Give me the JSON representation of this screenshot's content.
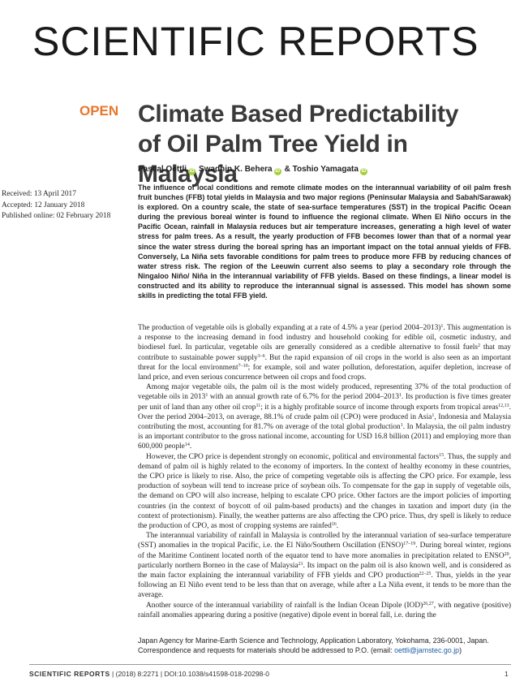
{
  "masthead": "SCIENTIFIC REPORTS",
  "open_label": "OPEN",
  "title": "Climate Based Predictability of Oil Palm Tree Yield in Malaysia",
  "authors": [
    "Pascal Oettli",
    "Swadhin K. Behera",
    "& Toshio Yamagata"
  ],
  "dates": [
    "Received: 13 April 2017",
    "Accepted: 12 January 2018",
    "Published online: 02 February 2018"
  ],
  "abstract": "The influence of local conditions and remote climate modes on the interannual variability of oil palm fresh fruit bunches (FFB) total yields in Malaysia and two major regions (Peninsular Malaysia and Sabah/Sarawak) is explored. On a country scale, the state of sea-surface temperatures (SST) in the tropical Pacific Ocean during the previous boreal winter is found to influence the regional climate. When El Niño occurs in the Pacific Ocean, rainfall in Malaysia reduces but air temperature increases, generating a high level of water stress for palm trees. As a result, the yearly production of FFB becomes lower than that of a normal year since the water stress during the boreal spring has an important impact on the total annual yields of FFB. Conversely, La Niña sets favorable conditions for palm trees to produce more FFB by reducing chances of water stress risk. The region of the Leeuwin current also seems to play a secondary role through the Ningaloo Niño/ Niña in the interannual variability of FFB yields. Based on these findings, a linear model is constructed and its ability to reproduce the interannual signal is assessed. This model has shown some skills in predicting the total FFB yield.",
  "body": [
    [
      "The production of vegetable oils is globally expanding at a rate of 4.5% a year (period 2004–2013)",
      "1",
      ". This augmentation is a response to the increasing demand in food industry and household cooking for edible oil, cosmetic industry, and biodiesel fuel. In particular, vegetable oils are generally considered as a credible alternative to fossil fuels",
      "2",
      " that may contribute to sustainable power supply",
      "3–6",
      ". But the rapid expansion of oil crops in the world is also seen as an important threat for the local environment",
      "7–10",
      "; for example, soil and water pollution, deforestation, aquifer depletion, increase of land price, and even serious concurrence between oil crops and food crops."
    ],
    [
      "Among major vegetable oils, the palm oil is the most widely produced, representing 37% of the total production of vegetable oils in 2013",
      "1",
      " with an annual growth rate of 6.7% for the period 2004–2013",
      "1",
      ". Its production is five times greater per unit of land than any other oil crop",
      "11",
      "; it is a highly profitable source of income through exports from tropical areas",
      "12,13",
      ". Over the period 2004–2013, on average, 88.1% of crude palm oil (CPO) were produced in Asia",
      "1",
      ", Indonesia and Malaysia contributing the most, accounting for 81.7% on average of the total global production",
      "1",
      ". In Malaysia, the oil palm industry is an important contributor to the gross national income, accounting for USD 16.8 billion (2011) and employing more than 600,000 people",
      "14",
      "."
    ],
    [
      "However, the CPO price is dependent strongly on economic, political and environmental factors",
      "15",
      ". Thus, the supply and demand of palm oil is highly related to the economy of importers. In the context of healthy economy in these countries, the CPO price is likely to rise. Also, the price of competing vegetable oils is affecting the CPO price. For example, less production of soybean will tend to increase price of soybean oils. To compensate for the gap in supply of vegetable oils, the demand on CPO will also increase, helping to escalate CPO price. Other factors are the import policies of importing countries (in the context of boycott of oil palm-based products) and the changes in taxation and import duty (in the context of protectionism). Finally, the weather patterns are also affecting the CPO price. Thus, dry spell is likely to reduce the production of CPO, as most of cropping systems are rainfed",
      "16",
      "."
    ],
    [
      "The interannual variability of rainfall in Malaysia is controlled by the interannual variation of sea-surface temperature (SST) anomalies in the tropical Pacific, i.e. the El Niño/Southern Oscillation (ENSO)",
      "17–19",
      ". During boreal winter, regions of the Maritime Continent located north of the equator tend to have more anomalies in precipitation related to ENSO",
      "20",
      ", particularly northern Borneo in the case of Malaysia",
      "21",
      ". Its impact on the palm oil is also known well, and is considered as the main factor explaining the interannual variability of FFB yields and CPO production",
      "22–25",
      ". Thus, yields in the year following an El Niño event tend to be less than that on average, while after a La Niña event, it tends to be more than the average."
    ],
    [
      "Another source of the interannual variability of rainfall is the Indian Ocean Dipole (IOD)",
      "26,27",
      ", with negative (positive) rainfall anomalies appearing during a positive (negative) dipole event in boreal fall, i.e. during the"
    ]
  ],
  "affiliation": "Japan Agency for Marine-Earth Science and Technology, Application Laboratory, Yokohama, 236-0001, Japan. Correspondence and requests for materials should be addressed to P.O. (email: ",
  "email": "oettli@jamstec.go.jp",
  "affiliation_end": ")",
  "footer": {
    "journal": "SCIENTIFIC REPORTS",
    "citation": " | (2018) 8:2271 | DOI:10.1038/s41598-018-20298-0",
    "page": "1"
  }
}
